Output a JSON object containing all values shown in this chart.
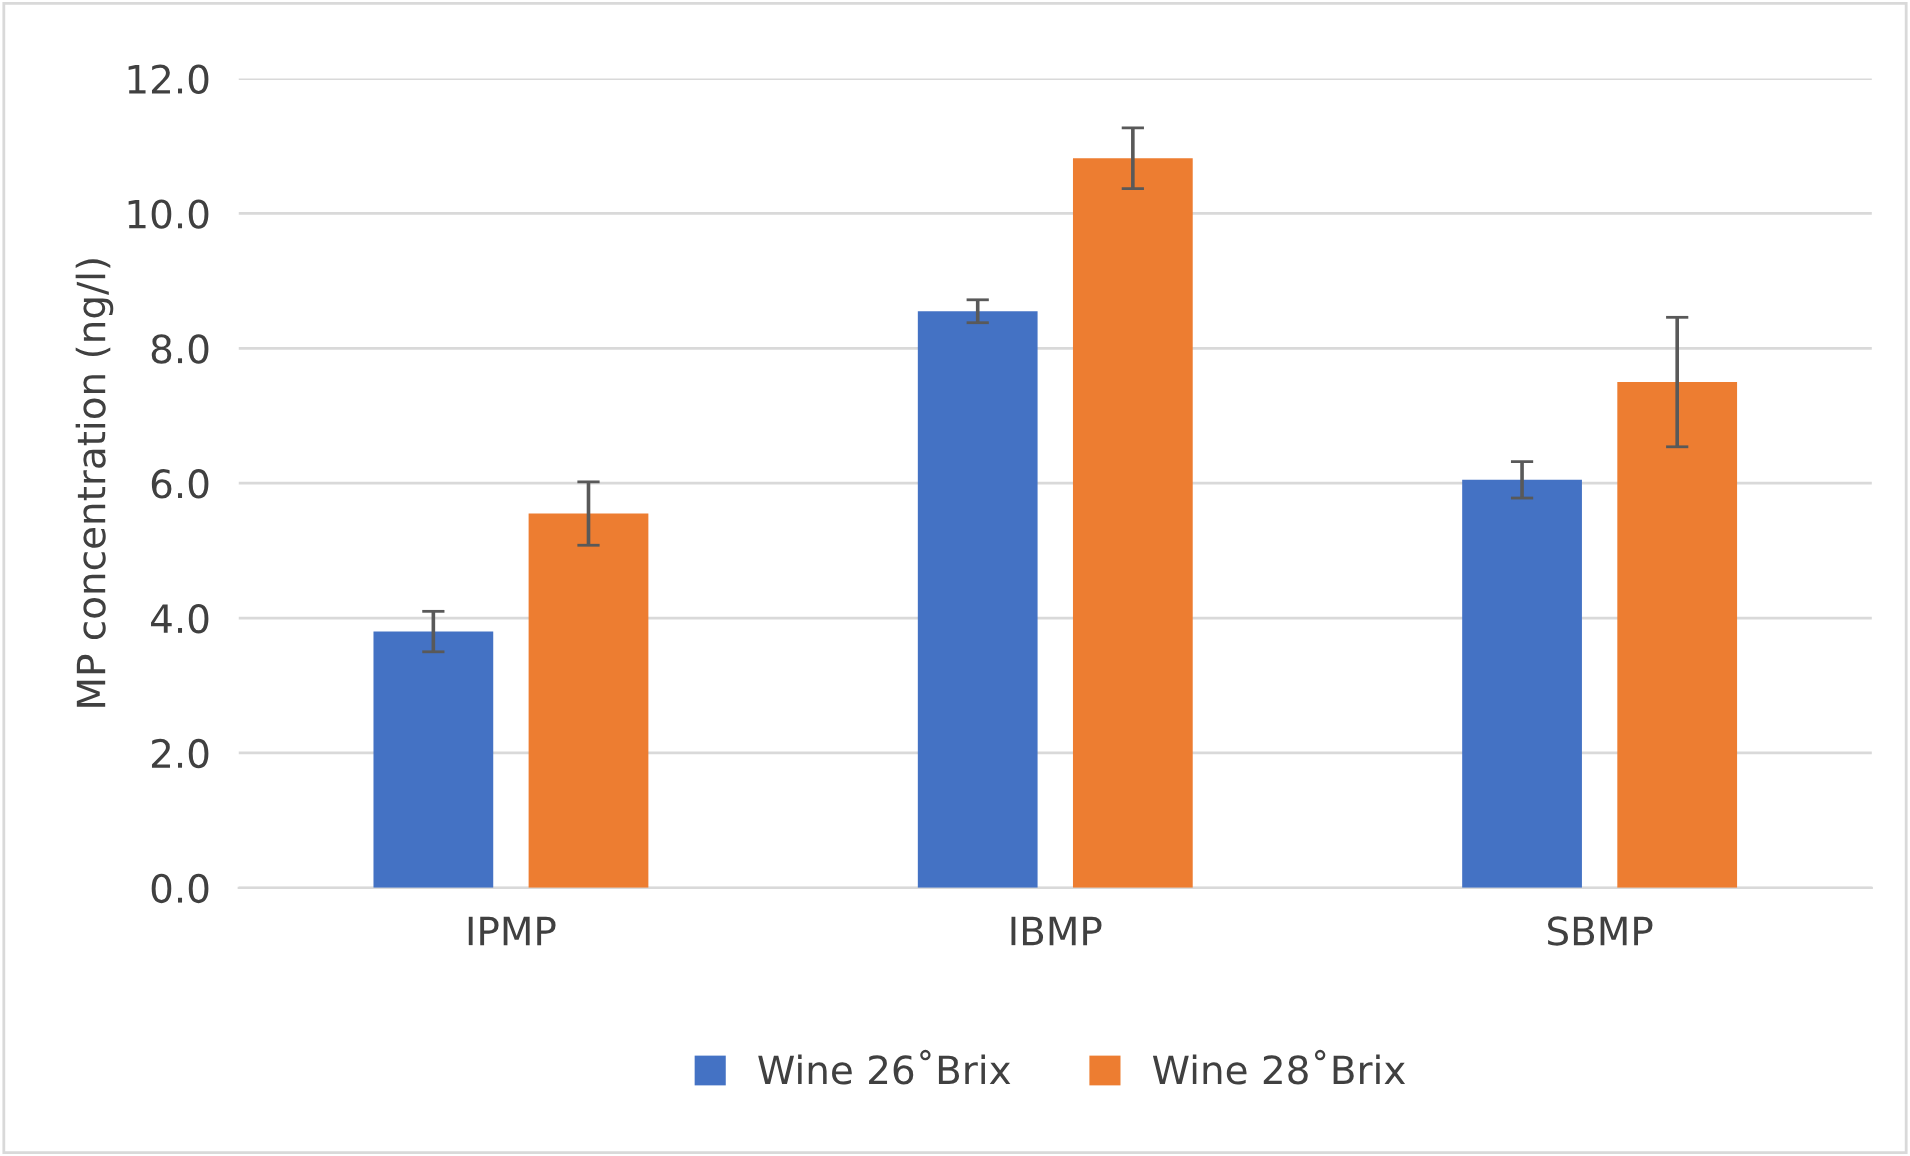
{
  "chart_data": {
    "type": "bar",
    "ylabel": "MP concentration (ng/l)",
    "categories": [
      "IPMP",
      "IBMP",
      "SBMP"
    ],
    "series": [
      {
        "name": "Wine 26˚Brix",
        "color": "#4472c4",
        "values": [
          3.8,
          8.55,
          6.05
        ],
        "errors": [
          0.3,
          0.17,
          0.27
        ]
      },
      {
        "name": "Wine 28˚Brix",
        "color": "#ed7d31",
        "values": [
          5.55,
          10.82,
          7.5
        ],
        "errors": [
          0.47,
          0.45,
          0.96
        ]
      }
    ],
    "ylim": [
      0,
      12
    ],
    "yticks": [
      {
        "value": 0,
        "label": "0.0"
      },
      {
        "value": 2,
        "label": "2.0"
      },
      {
        "value": 4,
        "label": "4.0"
      },
      {
        "value": 6,
        "label": "6.0"
      },
      {
        "value": 8,
        "label": "8.0"
      },
      {
        "value": 10,
        "label": "10.0"
      },
      {
        "value": 12,
        "label": "12.0"
      }
    ],
    "grid": "y",
    "legend": "bottom"
  }
}
